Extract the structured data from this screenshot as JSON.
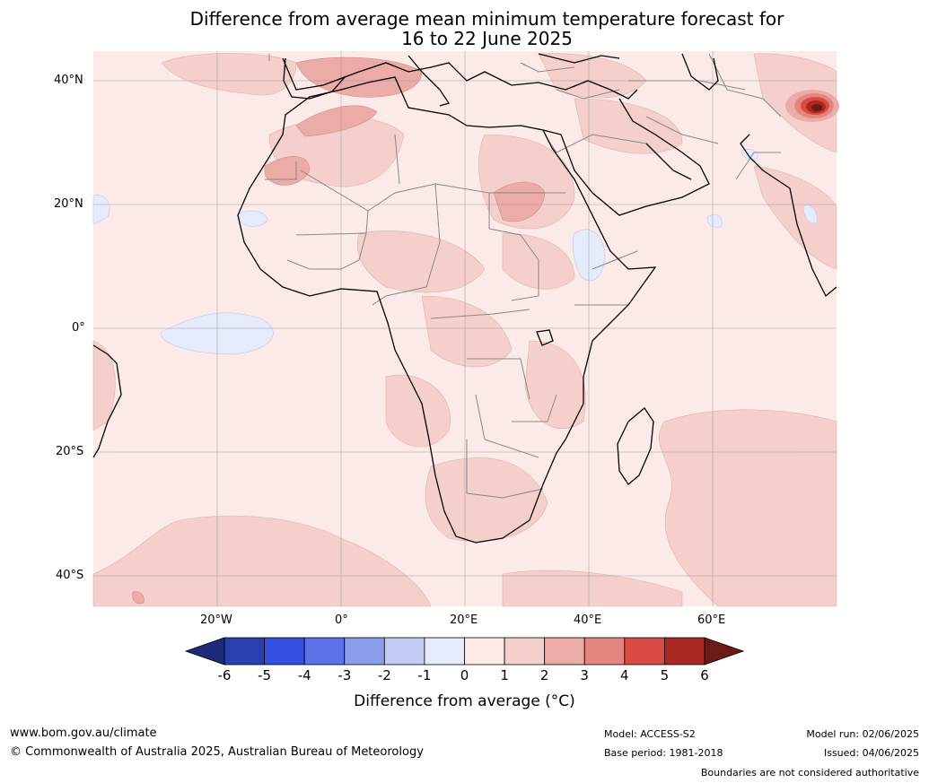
{
  "title": {
    "line1": "Difference from average mean minimum temperature forecast for",
    "line2": "16 to 22 June 2025"
  },
  "axes": {
    "lat_labels": [
      "40°N",
      "20°N",
      "0°",
      "20°S",
      "40°S"
    ],
    "lon_labels": [
      "20°W",
      "0°",
      "20°E",
      "40°E",
      "60°E"
    ]
  },
  "colorbar": {
    "ticks": [
      "-6",
      "-5",
      "-4",
      "-3",
      "-2",
      "-1",
      "0",
      "1",
      "2",
      "3",
      "4",
      "5",
      "6"
    ],
    "label": "Difference from average (°C)",
    "colors": [
      "#1e2a7a",
      "#2a3fb0",
      "#3350e0",
      "#5b73e6",
      "#8a9cec",
      "#c2cbf4",
      "#e6ebfb",
      "#fbeae8",
      "#f4cfcc",
      "#ebaba7",
      "#e48680",
      "#d94b42",
      "#a82a22",
      "#6b1a14"
    ]
  },
  "footer": {
    "website": "www.bom.gov.au/climate",
    "copyright": "© Commonwealth of Australia 2025, Australian Bureau of Meteorology",
    "model": "Model: ACCESS-S2",
    "base_period": "Base period: 1981-2018",
    "model_run": "Model run: 02/06/2025",
    "issued": "Issued: 04/06/2025",
    "disclaimer": "Boundaries are not considered authoritative"
  }
}
